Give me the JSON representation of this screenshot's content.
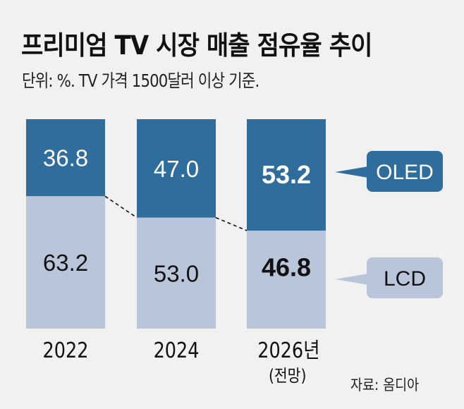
{
  "title": "프리미엄 TV 시장 매출 점유율 추이",
  "subtitle": "단위: %. TV 가격 1500달러 이상 기준.",
  "source": "자료: 옴디아",
  "colors": {
    "oled": "#2f6d9c",
    "lcd": "#b9c6da",
    "background": "#f1f1f1",
    "connector": "#111111"
  },
  "chart_data": {
    "type": "bar",
    "stacked": true,
    "title": "프리미엄 TV 시장 매출 점유율 추이",
    "subtitle": "단위: %. TV 가격 1500달러 이상 기준.",
    "xlabel": "",
    "ylabel": "",
    "ylim": [
      0,
      100
    ],
    "grid": false,
    "categories": [
      "2022",
      "2024",
      "2026년"
    ],
    "category_notes": [
      "",
      "",
      "(전망)"
    ],
    "series": [
      {
        "name": "OLED",
        "values": [
          36.8,
          47.0,
          53.2
        ],
        "position": "top"
      },
      {
        "name": "LCD",
        "values": [
          63.2,
          53.0,
          46.8
        ],
        "position": "bottom"
      }
    ],
    "value_labels": {
      "OLED": [
        "36.8",
        "47.0",
        "53.2"
      ],
      "LCD": [
        "63.2",
        "53.0",
        "46.8"
      ]
    },
    "highlight_index": 2,
    "legend": {
      "placement": "right",
      "entries": [
        "OLED",
        "LCD"
      ],
      "style": "callout"
    },
    "annotations": [
      "dashed connector line linking OLED/LCD boundaries across bars"
    ],
    "source": "자료: 옴디아"
  }
}
